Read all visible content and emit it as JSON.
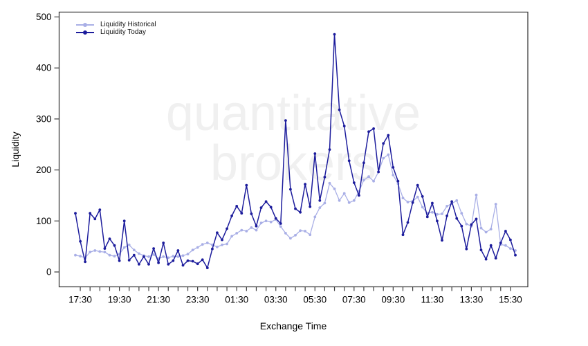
{
  "watermark": {
    "line1": "quantitative",
    "line2": "brokers"
  },
  "axes": {
    "ylabel": "Liquidity",
    "xlabel": "Exchange Time"
  },
  "chart_data": {
    "type": "line",
    "title": "",
    "xlabel": "Exchange Time",
    "ylabel": "Liquidity",
    "ylim": [
      0,
      500
    ],
    "yticks": [
      0,
      100,
      200,
      300,
      400,
      500
    ],
    "grid": false,
    "legend_position": "top-left",
    "x_interval_minutes": 15,
    "times": [
      "17:15",
      "17:30",
      "17:45",
      "18:00",
      "18:15",
      "18:30",
      "18:45",
      "19:00",
      "19:15",
      "19:30",
      "19:45",
      "20:00",
      "20:15",
      "20:30",
      "20:45",
      "21:00",
      "21:15",
      "21:30",
      "21:45",
      "22:00",
      "22:15",
      "22:30",
      "22:45",
      "23:00",
      "23:15",
      "23:30",
      "23:45",
      "00:00",
      "00:15",
      "00:30",
      "00:45",
      "01:00",
      "01:15",
      "01:30",
      "01:45",
      "02:00",
      "02:15",
      "02:30",
      "02:45",
      "03:00",
      "03:15",
      "03:30",
      "03:45",
      "04:00",
      "04:15",
      "04:30",
      "04:45",
      "05:00",
      "05:15",
      "05:30",
      "05:45",
      "06:00",
      "06:15",
      "06:30",
      "06:45",
      "07:00",
      "07:15",
      "07:30",
      "07:45",
      "08:00",
      "08:15",
      "08:30",
      "08:45",
      "09:00",
      "09:15",
      "09:30",
      "09:45",
      "10:00",
      "10:15",
      "10:30",
      "10:45",
      "11:00",
      "11:15",
      "11:30",
      "11:45",
      "12:00",
      "12:15",
      "12:30",
      "12:45",
      "13:00",
      "13:15",
      "13:30",
      "13:45",
      "14:00",
      "14:15",
      "14:30",
      "14:45",
      "15:00",
      "15:15",
      "15:30",
      "15:45"
    ],
    "xticks": [
      {
        "index": 1,
        "label": "17:30"
      },
      {
        "index": 9,
        "label": "19:30"
      },
      {
        "index": 17,
        "label": "21:30"
      },
      {
        "index": 25,
        "label": "23:30"
      },
      {
        "index": 33,
        "label": "01:30"
      },
      {
        "index": 41,
        "label": "03:30"
      },
      {
        "index": 49,
        "label": "05:30"
      },
      {
        "index": 57,
        "label": "07:30"
      },
      {
        "index": 65,
        "label": "09:30"
      },
      {
        "index": 73,
        "label": "11:30"
      },
      {
        "index": 81,
        "label": "13:30"
      },
      {
        "index": 89,
        "label": "15:30"
      }
    ],
    "series": [
      {
        "name": "Liquidity Historical",
        "color": "#a9afe6",
        "marker": "circle",
        "values": [
          33,
          31,
          28,
          39,
          42,
          40,
          39,
          33,
          31,
          35,
          48,
          53,
          43,
          36,
          32,
          30,
          34,
          26,
          30,
          28,
          31,
          30,
          32,
          35,
          43,
          48,
          54,
          57,
          53,
          49,
          53,
          55,
          70,
          76,
          82,
          80,
          87,
          82,
          96,
          100,
          98,
          103,
          89,
          76,
          66,
          72,
          81,
          80,
          73,
          108,
          126,
          135,
          174,
          163,
          140,
          154,
          136,
          140,
          158,
          180,
          187,
          178,
          196,
          223,
          230,
          190,
          173,
          145,
          137,
          139,
          147,
          127,
          115,
          117,
          113,
          114,
          129,
          134,
          140,
          115,
          94,
          90,
          151,
          86,
          78,
          84,
          133,
          54,
          52,
          46,
          42
        ]
      },
      {
        "name": "Liquidity Today",
        "color": "#1c1c9c",
        "marker": "circle",
        "values": [
          115,
          60,
          20,
          115,
          104,
          122,
          46,
          65,
          52,
          22,
          100,
          23,
          33,
          15,
          30,
          15,
          46,
          18,
          57,
          15,
          22,
          42,
          13,
          22,
          21,
          16,
          24,
          8,
          45,
          77,
          63,
          85,
          110,
          129,
          115,
          170,
          114,
          90,
          126,
          138,
          127,
          105,
          95,
          297,
          162,
          124,
          117,
          172,
          128,
          232,
          140,
          186,
          240,
          466,
          318,
          286,
          218,
          175,
          150,
          214,
          275,
          281,
          196,
          252,
          268,
          205,
          178,
          73,
          97,
          136,
          170,
          148,
          108,
          135,
          100,
          62,
          110,
          138,
          105,
          90,
          45,
          93,
          104,
          43,
          25,
          52,
          27,
          57,
          80,
          63,
          33
        ]
      }
    ]
  }
}
